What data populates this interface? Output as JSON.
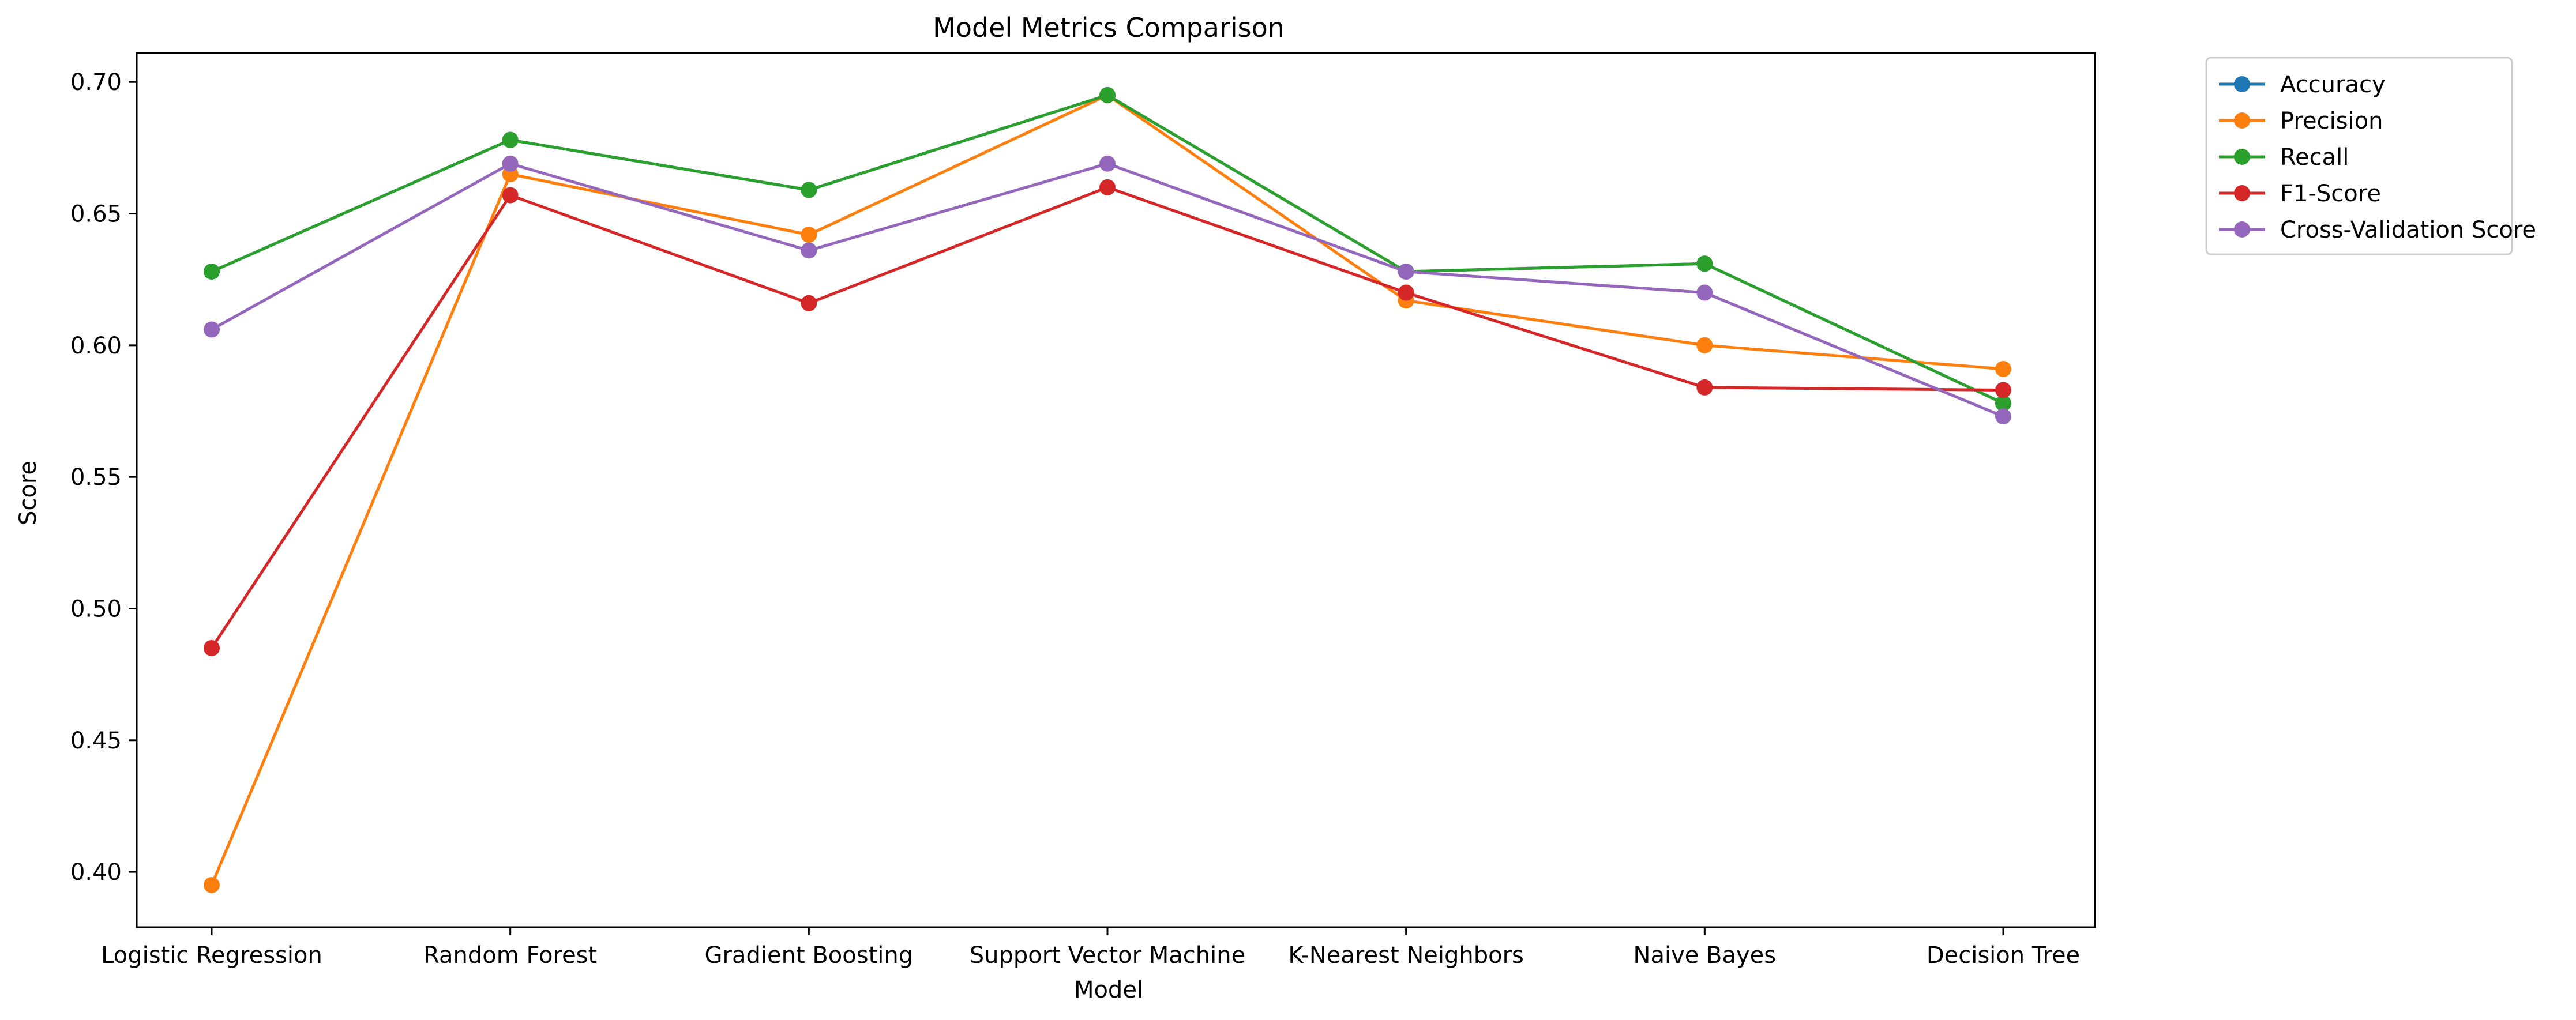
{
  "chart_data": {
    "type": "line",
    "title": "Model Metrics Comparison",
    "xlabel": "Model",
    "ylabel": "Score",
    "categories": [
      "Logistic Regression",
      "Random Forest",
      "Gradient Boosting",
      "Support Vector Machine",
      "K-Nearest Neighbors",
      "Naive Bayes",
      "Decision Tree"
    ],
    "ylim": [
      0.379,
      0.711
    ],
    "yticks": [
      0.4,
      0.45,
      0.5,
      0.55,
      0.6,
      0.65,
      0.7
    ],
    "ytick_labels": [
      "0.40",
      "0.45",
      "0.50",
      "0.55",
      "0.60",
      "0.65",
      "0.70"
    ],
    "grid": false,
    "legend_position": "outside-top-right",
    "series": [
      {
        "name": "Accuracy",
        "color": "#1f77b4",
        "values": [
          0.628,
          0.678,
          0.659,
          0.695,
          0.628,
          0.631,
          0.578
        ]
      },
      {
        "name": "Precision",
        "color": "#ff7f0e",
        "values": [
          0.395,
          0.665,
          0.642,
          0.695,
          0.617,
          0.6,
          0.591
        ]
      },
      {
        "name": "Recall",
        "color": "#2ca02c",
        "values": [
          0.628,
          0.678,
          0.659,
          0.695,
          0.628,
          0.631,
          0.578
        ]
      },
      {
        "name": "F1-Score",
        "color": "#d62728",
        "values": [
          0.485,
          0.657,
          0.616,
          0.66,
          0.62,
          0.584,
          0.583
        ]
      },
      {
        "name": "Cross-Validation Score",
        "color": "#9467bd",
        "values": [
          0.606,
          0.669,
          0.636,
          0.669,
          0.628,
          0.62,
          0.573
        ]
      }
    ]
  }
}
